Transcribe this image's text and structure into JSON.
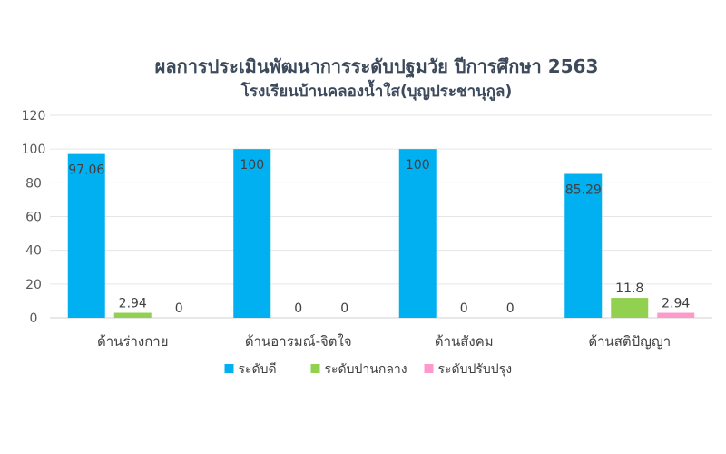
{
  "chart_data": {
    "type": "bar",
    "title": "ผลการประเมินพัฒนาการระดับปฐมวัย ปีการศึกษา 2563",
    "subtitle": "โรงเรียนบ้านคลองน้ำใส(บุญประชานุกูล)",
    "categories": [
      "ด้านร่างกาย",
      "ด้านอารมณ์-จิตใจ",
      "ด้านสังคม",
      "ด้านสติปัญญา"
    ],
    "series": [
      {
        "name": "ระดับดี",
        "color": "#00b0f0",
        "values": [
          97.06,
          100,
          100,
          85.29
        ],
        "labels": [
          "97.06",
          "100",
          "100",
          "85.29"
        ]
      },
      {
        "name": "ระดับปานกลาง",
        "color": "#92d050",
        "values": [
          2.94,
          0,
          0,
          11.8
        ],
        "labels": [
          "2.94",
          "0",
          "0",
          "11.8"
        ]
      },
      {
        "name": "ระดับปรับปรุง",
        "color": "#ff99cc",
        "values": [
          0,
          0,
          0,
          2.94
        ],
        "labels": [
          "0",
          "0",
          "0",
          "2.94"
        ]
      }
    ],
    "ylim": [
      0,
      120
    ],
    "yticks": [
      0,
      20,
      40,
      60,
      80,
      100,
      120
    ],
    "ytick_labels": [
      "0",
      "20",
      "40",
      "60",
      "80",
      "100",
      "120"
    ],
    "grid": true,
    "legend": "bottom"
  }
}
